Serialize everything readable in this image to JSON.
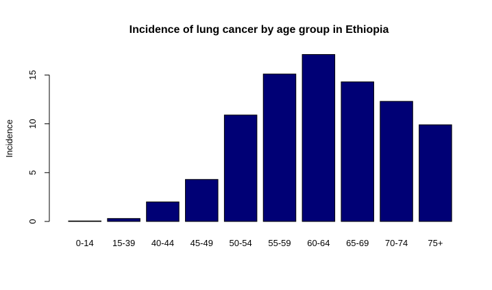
{
  "chart_data": {
    "type": "bar",
    "title": "Incidence of lung cancer by age group in Ethiopia",
    "xlabel": "",
    "ylabel": "Incidence",
    "categories": [
      "0-14",
      "15-39",
      "40-44",
      "45-49",
      "50-54",
      "55-59",
      "60-64",
      "65-69",
      "70-74",
      "75+"
    ],
    "values": [
      0.05,
      0.3,
      2.0,
      4.3,
      10.9,
      15.1,
      17.1,
      14.3,
      12.3,
      9.9
    ],
    "yticks": [
      0,
      5,
      10,
      15
    ],
    "ylim": [
      0,
      17.8
    ],
    "bar_color": "#000075",
    "grid": false,
    "legend": "none"
  }
}
